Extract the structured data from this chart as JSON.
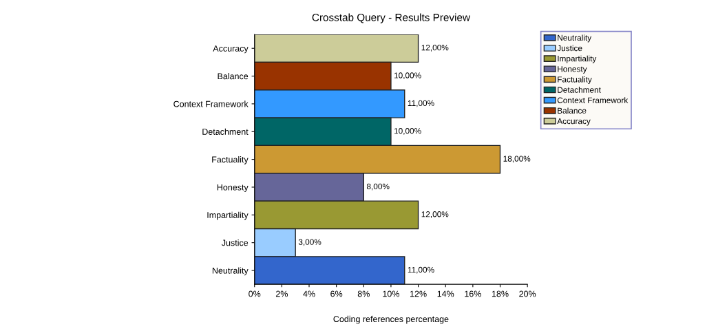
{
  "chart_data": {
    "type": "bar",
    "orientation": "horizontal",
    "title": "Crosstab Query - Results Preview",
    "xlabel": "Coding references percentage",
    "categories": [
      "Accuracy",
      "Balance",
      "Context Framework",
      "Detachment",
      "Factuality",
      "Honesty",
      "Impartiality",
      "Justice",
      "Neutrality"
    ],
    "series": [
      {
        "name": "Accuracy",
        "color": "#cccc99",
        "values": [
          12,
          null,
          null,
          null,
          null,
          null,
          null,
          null,
          null
        ],
        "value_labels": [
          "12,00%",
          null,
          null,
          null,
          null,
          null,
          null,
          null,
          null
        ]
      },
      {
        "name": "Balance",
        "color": "#993300",
        "values": [
          null,
          10,
          null,
          null,
          null,
          null,
          null,
          null,
          null
        ],
        "value_labels": [
          null,
          "10,00%",
          null,
          null,
          null,
          null,
          null,
          null,
          null
        ]
      },
      {
        "name": "Context Framework",
        "color": "#3399ff",
        "values": [
          null,
          null,
          11,
          null,
          null,
          null,
          null,
          null,
          null
        ],
        "value_labels": [
          null,
          null,
          "11,00%",
          null,
          null,
          null,
          null,
          null,
          null
        ]
      },
      {
        "name": "Detachment",
        "color": "#006666",
        "values": [
          null,
          null,
          null,
          10,
          null,
          null,
          null,
          null,
          null
        ],
        "value_labels": [
          null,
          null,
          null,
          "10,00%",
          null,
          null,
          null,
          null,
          null
        ]
      },
      {
        "name": "Factuality",
        "color": "#cc9933",
        "values": [
          null,
          null,
          null,
          null,
          18,
          null,
          null,
          null,
          null
        ],
        "value_labels": [
          null,
          null,
          null,
          null,
          "18,00%",
          null,
          null,
          null,
          null
        ]
      },
      {
        "name": "Honesty",
        "color": "#666699",
        "values": [
          null,
          null,
          null,
          null,
          null,
          8,
          null,
          null,
          null
        ],
        "value_labels": [
          null,
          null,
          null,
          null,
          null,
          "8,00%",
          null,
          null,
          null
        ]
      },
      {
        "name": "Impartiality",
        "color": "#999933",
        "values": [
          null,
          null,
          null,
          null,
          null,
          null,
          12,
          null,
          null
        ],
        "value_labels": [
          null,
          null,
          null,
          null,
          null,
          null,
          "12,00%",
          null,
          null
        ]
      },
      {
        "name": "Justice",
        "color": "#99ccff",
        "values": [
          null,
          null,
          null,
          null,
          null,
          null,
          null,
          3,
          null
        ],
        "value_labels": [
          null,
          null,
          null,
          null,
          null,
          null,
          null,
          "3,00%",
          null
        ]
      },
      {
        "name": "Neutrality",
        "color": "#3366cc",
        "values": [
          null,
          null,
          null,
          null,
          null,
          null,
          null,
          null,
          11
        ],
        "value_labels": [
          null,
          null,
          null,
          null,
          null,
          null,
          null,
          null,
          "11,00%"
        ]
      }
    ],
    "xlim": [
      0,
      20
    ],
    "xticks": [
      {
        "value": 0,
        "label": "0%"
      },
      {
        "value": 2,
        "label": "2%"
      },
      {
        "value": 4,
        "label": "4%"
      },
      {
        "value": 6,
        "label": "6%"
      },
      {
        "value": 8,
        "label": "8%"
      },
      {
        "value": 10,
        "label": "10%"
      },
      {
        "value": 12,
        "label": "12%"
      },
      {
        "value": 14,
        "label": "14%"
      },
      {
        "value": 16,
        "label": "16%"
      },
      {
        "value": 18,
        "label": "18%"
      },
      {
        "value": 20,
        "label": "20%"
      }
    ],
    "grid": false,
    "legend": "right"
  }
}
